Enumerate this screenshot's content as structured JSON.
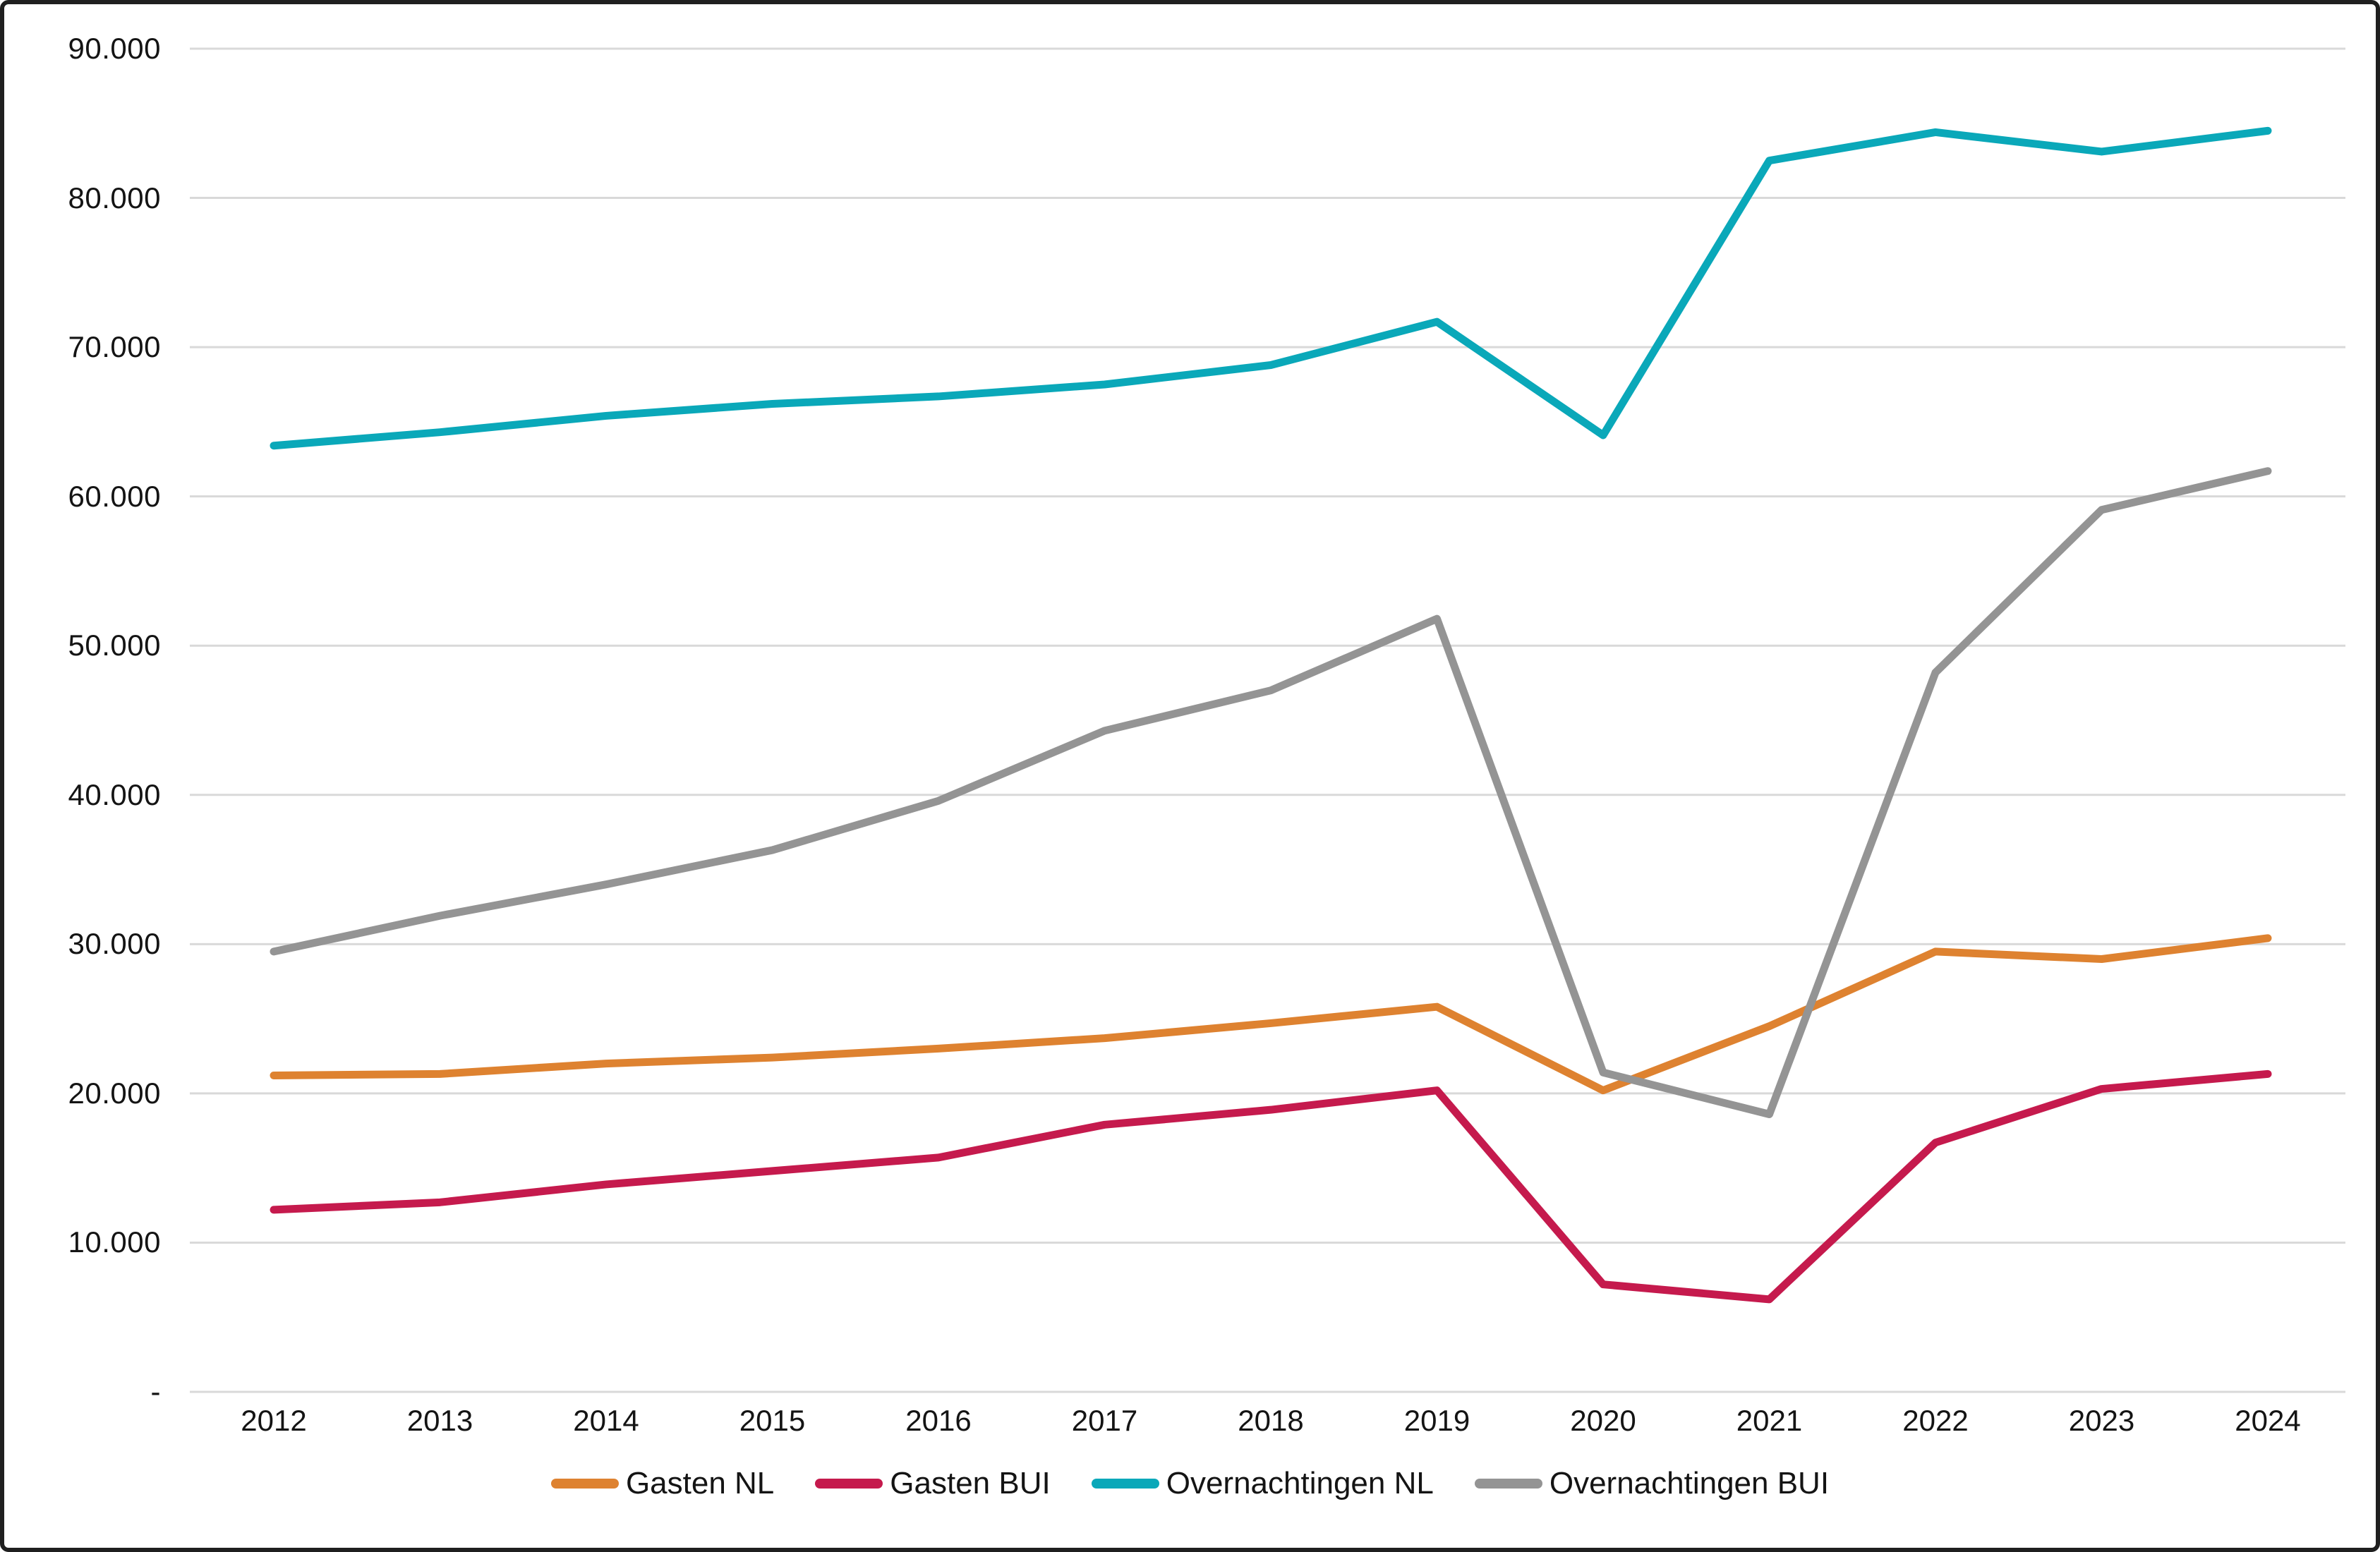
{
  "chart_data": {
    "type": "line",
    "title": "",
    "xlabel": "",
    "ylabel": "",
    "x_categories": [
      "2012",
      "2013",
      "2014",
      "2015",
      "2016",
      "2017",
      "2018",
      "2019",
      "2020",
      "2021",
      "2022",
      "2023",
      "2024"
    ],
    "series": [
      {
        "name": "Gasten NL",
        "color": "#DE8230",
        "values": [
          21200,
          21300,
          22000,
          22400,
          23000,
          23700,
          24700,
          25800,
          20200,
          24500,
          29500,
          29000,
          30400
        ]
      },
      {
        "name": "Gasten BUI",
        "color": "#C51A4D",
        "values": [
          12200,
          12700,
          13900,
          14800,
          15700,
          17900,
          18900,
          20200,
          7200,
          6200,
          16700,
          20300,
          21300
        ]
      },
      {
        "name": "Overnachtingen NL",
        "color": "#0AA8B9",
        "values": [
          63400,
          64300,
          65400,
          66200,
          66700,
          67500,
          68800,
          71700,
          64100,
          82500,
          84400,
          83100,
          84500
        ]
      },
      {
        "name": "Overnachtingen BUI",
        "color": "#949494",
        "values": [
          29500,
          31900,
          34000,
          36300,
          39600,
          44300,
          47000,
          51800,
          21400,
          18600,
          48200,
          59100,
          61700
        ]
      }
    ],
    "ylim": [
      0,
      90000
    ],
    "y_tick_step": 10000,
    "y_tick_labels": [
      "-",
      "10.000",
      "20.000",
      "30.000",
      "40.000",
      "50.000",
      "60.000",
      "70.000",
      "80.000",
      "90.000"
    ],
    "grid": "horizontal-only",
    "gridline_color": "#D9D9D9",
    "legend_position": "bottom-center"
  }
}
